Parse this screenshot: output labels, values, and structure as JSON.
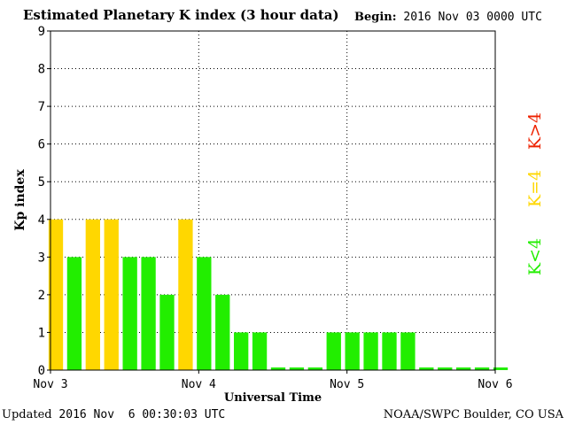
{
  "header": {
    "title": "Estimated Planetary K index (3 hour data)",
    "begin_label": "Begin:",
    "begin_value": "2016 Nov 03 0000 UTC"
  },
  "footer": {
    "updated_label": "Updated",
    "updated_value": "2016 Nov  6 00:30:03 UTC",
    "source": "NOAA/SWPC Boulder, CO USA"
  },
  "legend": {
    "below": "K<4",
    "equal": "K=4",
    "above": "K>4"
  },
  "colors": {
    "below": "#22ee00",
    "equal": "#ffd700",
    "above": "#ee2200"
  },
  "chart_data": {
    "type": "bar",
    "title": "Estimated Planetary K index (3 hour data)",
    "xlabel": "Universal Time",
    "ylabel": "Kp index",
    "ylim": [
      0,
      9
    ],
    "yticks": [
      "0",
      "1",
      "2",
      "3",
      "4",
      "5",
      "6",
      "7",
      "8",
      "9"
    ],
    "xticks": [
      "Nov 3",
      "Nov 4",
      "Nov 5",
      "Nov 6"
    ],
    "grid": true,
    "values": [
      4,
      3,
      4,
      4,
      3,
      3,
      2,
      4,
      3,
      2,
      1,
      1,
      0.07,
      0.07,
      0.07,
      1,
      1,
      1,
      1,
      1,
      0.07,
      0.07,
      0.07,
      0.07,
      0.07
    ]
  }
}
